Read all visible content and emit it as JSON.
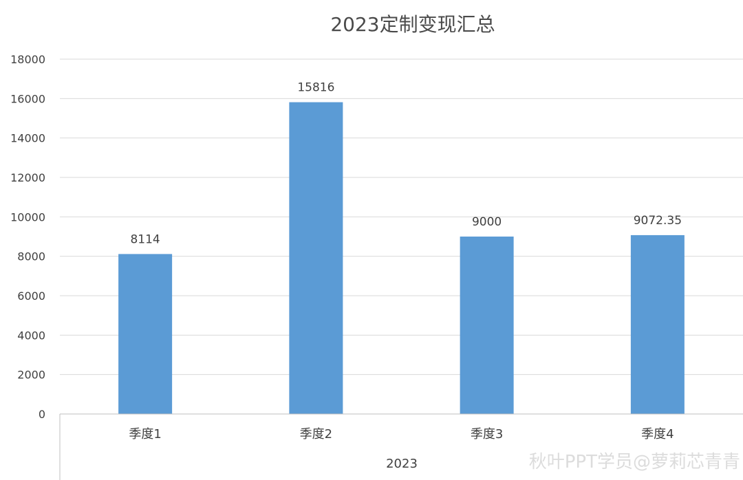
{
  "chart_data": {
    "type": "bar",
    "title": "2023定制变现汇总",
    "categories": [
      "季度1",
      "季度2",
      "季度3",
      "季度4"
    ],
    "values": [
      8114,
      15816,
      9000,
      9072.35
    ],
    "data_labels": [
      "8114",
      "15816",
      "9000",
      "9072.35"
    ],
    "group_label": "2023",
    "y_ticks": [
      "0",
      "2000",
      "4000",
      "6000",
      "8000",
      "10000",
      "12000",
      "14000",
      "16000",
      "18000"
    ],
    "ylim": [
      0,
      18000
    ],
    "bar_color": "#5b9bd5",
    "grid": true
  },
  "watermark": "秋叶PPT学员@萝莉芯青青"
}
